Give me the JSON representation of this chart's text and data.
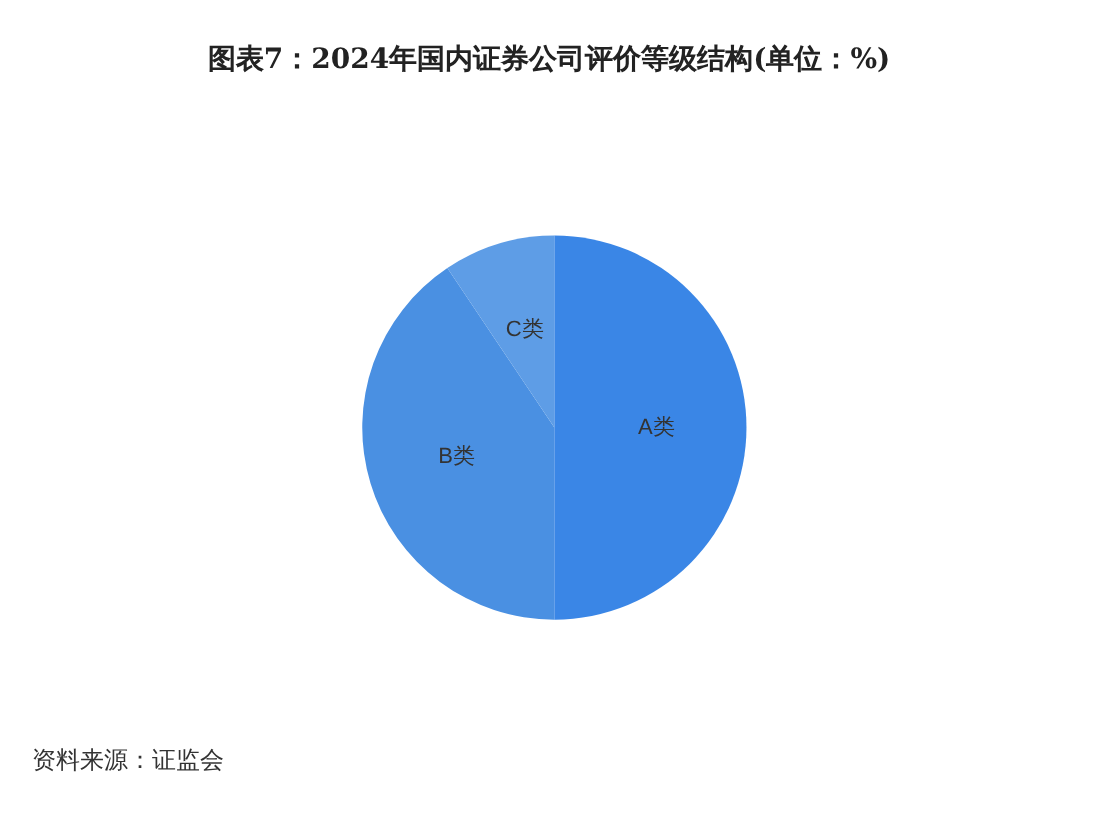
{
  "chart_data": {
    "type": "pie",
    "title": "图表7：2024年国内证券公司评价等级结构(单位：%)",
    "categories": [
      "A类",
      "B类",
      "C类"
    ],
    "values": [
      50,
      40.6,
      9.4
    ],
    "colors": [
      "#3a86e6",
      "#4a90e2",
      "#5e9de6"
    ],
    "annotations": [
      "资料来源：证监会"
    ]
  }
}
